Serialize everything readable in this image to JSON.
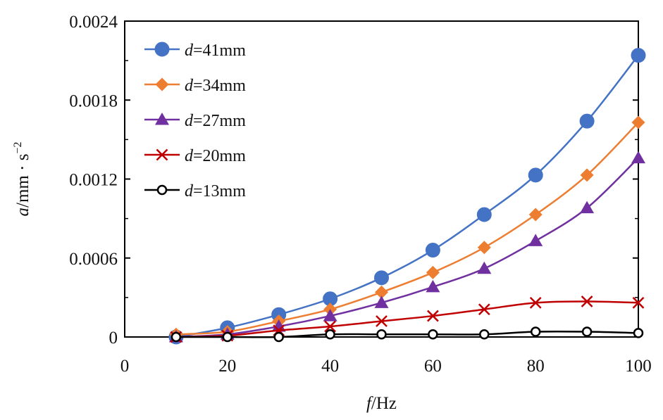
{
  "chart_data": {
    "type": "line",
    "x_axis": {
      "label_var": "f",
      "label_unit": "/Hz",
      "min": 0,
      "max": 100,
      "ticks": [
        "0",
        "20",
        "40",
        "60",
        "80",
        "100"
      ]
    },
    "y_axis": {
      "label_var": "a",
      "label_unit": "/mm · s",
      "label_exp": "−2",
      "min": 0,
      "max": 0.0024,
      "ticks": [
        "0",
        "0.0006",
        "0.0012",
        "0.0018",
        "0.0024"
      ]
    },
    "x": [
      10,
      20,
      30,
      40,
      50,
      60,
      70,
      80,
      90,
      100
    ],
    "series": [
      {
        "prefix": "d",
        "name": "=41mm",
        "color": "#4472c4",
        "marker": "circle",
        "values": [
          0.0,
          7e-05,
          0.00017,
          0.00029,
          0.00045,
          0.00066,
          0.00093,
          0.00123,
          0.00164,
          0.00214
        ]
      },
      {
        "prefix": "d",
        "name": "=34mm",
        "color": "#ed7d31",
        "marker": "diamond",
        "values": [
          2e-05,
          4e-05,
          0.00012,
          0.00021,
          0.00034,
          0.00049,
          0.00068,
          0.00093,
          0.00123,
          0.00163
        ]
      },
      {
        "prefix": "d",
        "name": "=27mm",
        "color": "#7030a0",
        "marker": "triangle",
        "values": [
          0.0,
          2e-05,
          8e-05,
          0.00016,
          0.00026,
          0.00038,
          0.00052,
          0.00073,
          0.00098,
          0.00136
        ]
      },
      {
        "prefix": "d",
        "name": "=20mm",
        "color": "#c00000",
        "marker": "x",
        "values": [
          0.0,
          1e-05,
          5e-05,
          8e-05,
          0.00012,
          0.00016,
          0.00021,
          0.00026,
          0.00027,
          0.00026
        ]
      },
      {
        "prefix": "d",
        "name": "=13mm",
        "color": "#000000",
        "marker": "open-circle",
        "values": [
          0.0,
          0.0,
          0.0,
          2e-05,
          2e-05,
          2e-05,
          2e-05,
          4e-05,
          4e-05,
          3e-05
        ]
      }
    ],
    "legend_position": "top-left",
    "grid": false
  }
}
